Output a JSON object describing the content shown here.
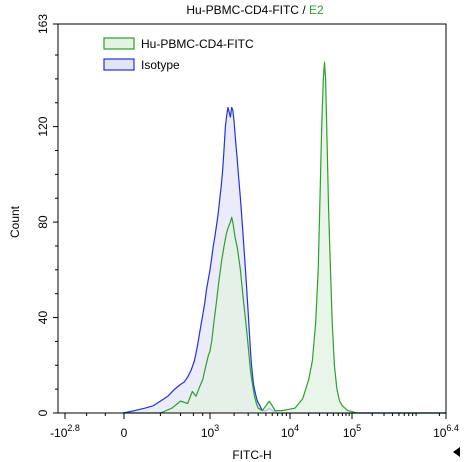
{
  "chart_data": {
    "type": "area",
    "title": "Hu-PBMC-CD4-FITC",
    "title_separator": " / ",
    "title_gate": "E2",
    "xlabel": "FITC-H",
    "ylabel": "Count",
    "x_scale": "biexponential",
    "ylim": [
      0,
      163
    ],
    "y_ticks": [
      0,
      40,
      80,
      120,
      163
    ],
    "x_ticks": [
      {
        "base": "-10",
        "exp": "2.8"
      },
      {
        "base": "0",
        "exp": ""
      },
      {
        "base": "10",
        "exp": "3"
      },
      {
        "base": "10",
        "exp": "4"
      },
      {
        "base": "10",
        "exp": "5"
      },
      {
        "base": "10",
        "exp": "6.4"
      }
    ],
    "legend_position": "top-left",
    "series": [
      {
        "name": "Hu-PBMC-CD4-FITC",
        "line_color": "#2ca02c",
        "fill_color": "#e3f2e3",
        "points": [
          [
            -10,
            0
          ],
          [
            200,
            0
          ],
          [
            300,
            2
          ],
          [
            400,
            5
          ],
          [
            500,
            4
          ],
          [
            580,
            9
          ],
          [
            650,
            7
          ],
          [
            730,
            11
          ],
          [
            800,
            14
          ],
          [
            870,
            19
          ],
          [
            950,
            24
          ],
          [
            1000,
            26
          ],
          [
            1050,
            30
          ],
          [
            1120,
            38
          ],
          [
            1200,
            46
          ],
          [
            1300,
            56
          ],
          [
            1400,
            64
          ],
          [
            1500,
            70
          ],
          [
            1600,
            75
          ],
          [
            1700,
            78
          ],
          [
            1800,
            80
          ],
          [
            1870,
            82
          ],
          [
            1950,
            79
          ],
          [
            2050,
            74
          ],
          [
            2200,
            69
          ],
          [
            2400,
            60
          ],
          [
            2600,
            48
          ],
          [
            2800,
            38
          ],
          [
            3000,
            28
          ],
          [
            3200,
            18
          ],
          [
            3400,
            12
          ],
          [
            3600,
            7
          ],
          [
            3800,
            4
          ],
          [
            4000,
            2
          ],
          [
            4500,
            1
          ],
          [
            5000,
            3
          ],
          [
            5500,
            5
          ],
          [
            6000,
            3
          ],
          [
            6500,
            1
          ],
          [
            8000,
            1
          ],
          [
            12000,
            2
          ],
          [
            16000,
            6
          ],
          [
            20000,
            14
          ],
          [
            23000,
            22
          ],
          [
            26000,
            38
          ],
          [
            28500,
            60
          ],
          [
            30500,
            90
          ],
          [
            32500,
            120
          ],
          [
            34500,
            140
          ],
          [
            36000,
            147
          ],
          [
            37500,
            140
          ],
          [
            39500,
            115
          ],
          [
            42000,
            85
          ],
          [
            45000,
            60
          ],
          [
            48000,
            38
          ],
          [
            52000,
            20
          ],
          [
            57000,
            10
          ],
          [
            63000,
            5
          ],
          [
            70000,
            3
          ],
          [
            85000,
            1
          ],
          [
            120000,
            0
          ],
          [
            2500000,
            0
          ]
        ]
      },
      {
        "name": "Isotype",
        "line_color": "#2233dd",
        "fill_color": "#e4e4f7",
        "points": [
          [
            -10,
            0
          ],
          [
            50,
            1
          ],
          [
            100,
            2
          ],
          [
            150,
            3
          ],
          [
            200,
            5
          ],
          [
            260,
            7
          ],
          [
            330,
            10
          ],
          [
            400,
            12
          ],
          [
            450,
            13
          ],
          [
            500,
            15
          ],
          [
            560,
            18
          ],
          [
            620,
            22
          ],
          [
            680,
            28
          ],
          [
            740,
            35
          ],
          [
            800,
            41
          ],
          [
            850,
            46
          ],
          [
            900,
            52
          ],
          [
            950,
            56
          ],
          [
            1000,
            60
          ],
          [
            1050,
            65
          ],
          [
            1100,
            70
          ],
          [
            1150,
            74
          ],
          [
            1200,
            78
          ],
          [
            1260,
            83
          ],
          [
            1320,
            89
          ],
          [
            1380,
            95
          ],
          [
            1440,
            102
          ],
          [
            1500,
            111
          ],
          [
            1560,
            120
          ],
          [
            1620,
            125
          ],
          [
            1680,
            128
          ],
          [
            1740,
            126
          ],
          [
            1800,
            124
          ],
          [
            1870,
            128
          ],
          [
            1930,
            127
          ],
          [
            2000,
            122
          ],
          [
            2080,
            115
          ],
          [
            2170,
            108
          ],
          [
            2280,
            99
          ],
          [
            2400,
            90
          ],
          [
            2550,
            78
          ],
          [
            2700,
            66
          ],
          [
            2850,
            54
          ],
          [
            3000,
            42
          ],
          [
            3150,
            30
          ],
          [
            3300,
            20
          ],
          [
            3500,
            12
          ],
          [
            3700,
            8
          ],
          [
            3900,
            5
          ],
          [
            4200,
            3
          ],
          [
            4500,
            1
          ],
          [
            5000,
            1
          ],
          [
            5500,
            2
          ],
          [
            6000,
            1
          ],
          [
            7000,
            0
          ],
          [
            2500000,
            0
          ]
        ]
      }
    ]
  }
}
